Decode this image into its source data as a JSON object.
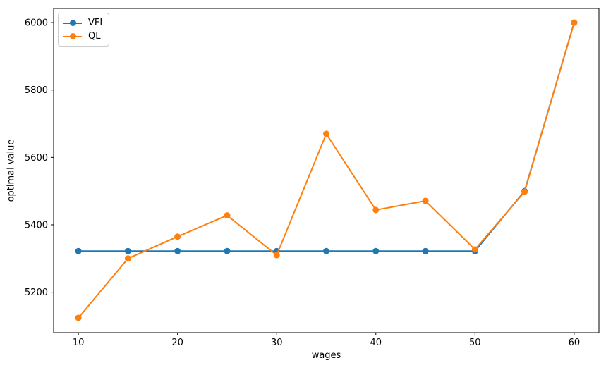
{
  "chart_data": {
    "type": "line",
    "title": "",
    "xlabel": "wages",
    "ylabel": "optimal value",
    "x": [
      10,
      15,
      20,
      25,
      30,
      35,
      40,
      45,
      50,
      55,
      60
    ],
    "series": [
      {
        "name": "VFI",
        "color": "#1f77b4",
        "marker": "o",
        "values": [
          5322,
          5322,
          5322,
          5322,
          5322,
          5322,
          5322,
          5322,
          5322,
          5500,
          6000
        ]
      },
      {
        "name": "QL",
        "color": "#ff7f0e",
        "marker": "o",
        "values": [
          5124,
          5300,
          5365,
          5428,
          5310,
          5670,
          5444,
          5471,
          5327,
          5498,
          6000
        ]
      }
    ],
    "xticks": [
      10,
      20,
      30,
      40,
      50,
      60
    ],
    "yticks": [
      5200,
      5400,
      5600,
      5800,
      6000
    ],
    "xlim": [
      7.5,
      62.5
    ],
    "ylim": [
      5080,
      6042
    ],
    "grid": false,
    "legend_position": "upper-left",
    "axis_color": "#000000",
    "text_color": "#000000"
  }
}
